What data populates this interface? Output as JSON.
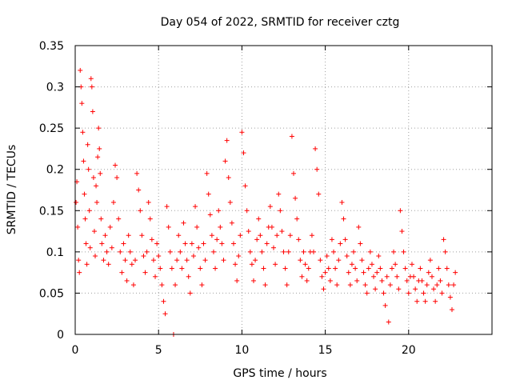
{
  "chart_data": {
    "type": "scatter",
    "title": "Day 054 of 2022, SRMTID for receiver cztg",
    "xlabel": "GPS time / hours",
    "ylabel": "SRMTID / TECUs",
    "xlim": [
      0,
      25
    ],
    "ylim": [
      0,
      0.35
    ],
    "grid": true,
    "marker": "+",
    "color": "#ff0000",
    "xticks": [
      {
        "value": 0,
        "label": "0"
      },
      {
        "value": 5,
        "label": "5"
      },
      {
        "value": 10,
        "label": "10"
      },
      {
        "value": 15,
        "label": "15"
      },
      {
        "value": 20,
        "label": "20"
      }
    ],
    "yticks": [
      {
        "value": 0,
        "label": "0"
      },
      {
        "value": 0.05,
        "label": "0.05"
      },
      {
        "value": 0.1,
        "label": "0.1"
      },
      {
        "value": 0.15,
        "label": "0.15"
      },
      {
        "value": 0.2,
        "label": "0.2"
      },
      {
        "value": 0.25,
        "label": "0.25"
      },
      {
        "value": 0.3,
        "label": "0.3"
      },
      {
        "value": 0.35,
        "label": "0.35"
      }
    ],
    "series": [
      {
        "name": "SRMTID",
        "points": [
          [
            0.05,
            0.16
          ],
          [
            0.1,
            0.185
          ],
          [
            0.15,
            0.13
          ],
          [
            0.2,
            0.09
          ],
          [
            0.25,
            0.075
          ],
          [
            0.3,
            0.32
          ],
          [
            0.35,
            0.3
          ],
          [
            0.4,
            0.28
          ],
          [
            0.45,
            0.245
          ],
          [
            0.5,
            0.21
          ],
          [
            0.55,
            0.17
          ],
          [
            0.6,
            0.14
          ],
          [
            0.65,
            0.11
          ],
          [
            0.7,
            0.085
          ],
          [
            0.75,
            0.23
          ],
          [
            0.8,
            0.2
          ],
          [
            0.85,
            0.15
          ],
          [
            0.9,
            0.105
          ],
          [
            0.95,
            0.31
          ],
          [
            1.0,
            0.3
          ],
          [
            1.05,
            0.27
          ],
          [
            1.1,
            0.19
          ],
          [
            1.15,
            0.125
          ],
          [
            1.2,
            0.095
          ],
          [
            1.25,
            0.18
          ],
          [
            1.3,
            0.16
          ],
          [
            1.35,
            0.215
          ],
          [
            1.4,
            0.25
          ],
          [
            1.45,
            0.225
          ],
          [
            1.5,
            0.195
          ],
          [
            1.55,
            0.14
          ],
          [
            1.6,
            0.11
          ],
          [
            1.7,
            0.09
          ],
          [
            1.8,
            0.12
          ],
          [
            1.9,
            0.1
          ],
          [
            2.0,
            0.085
          ],
          [
            2.1,
            0.13
          ],
          [
            2.2,
            0.105
          ],
          [
            2.3,
            0.16
          ],
          [
            2.4,
            0.205
          ],
          [
            2.5,
            0.19
          ],
          [
            2.6,
            0.14
          ],
          [
            2.7,
            0.1
          ],
          [
            2.8,
            0.075
          ],
          [
            2.9,
            0.11
          ],
          [
            3.0,
            0.09
          ],
          [
            3.1,
            0.065
          ],
          [
            3.2,
            0.12
          ],
          [
            3.3,
            0.1
          ],
          [
            3.4,
            0.085
          ],
          [
            3.5,
            0.06
          ],
          [
            3.6,
            0.09
          ],
          [
            3.7,
            0.195
          ],
          [
            3.8,
            0.175
          ],
          [
            3.9,
            0.15
          ],
          [
            4.0,
            0.12
          ],
          [
            4.1,
            0.095
          ],
          [
            4.2,
            0.075
          ],
          [
            4.3,
            0.1
          ],
          [
            4.4,
            0.16
          ],
          [
            4.5,
            0.14
          ],
          [
            4.6,
            0.115
          ],
          [
            4.7,
            0.09
          ],
          [
            4.8,
            0.07
          ],
          [
            4.9,
            0.11
          ],
          [
            5.0,
            0.095
          ],
          [
            5.1,
            0.08
          ],
          [
            5.2,
            0.06
          ],
          [
            5.3,
            0.04
          ],
          [
            5.4,
            0.025
          ],
          [
            5.5,
            0.155
          ],
          [
            5.6,
            0.13
          ],
          [
            5.7,
            0.1
          ],
          [
            5.8,
            0.08
          ],
          [
            5.9,
            0.0
          ],
          [
            6.0,
            0.06
          ],
          [
            6.1,
            0.09
          ],
          [
            6.2,
            0.12
          ],
          [
            6.3,
            0.1
          ],
          [
            6.4,
            0.08
          ],
          [
            6.5,
            0.135
          ],
          [
            6.6,
            0.11
          ],
          [
            6.7,
            0.09
          ],
          [
            6.8,
            0.07
          ],
          [
            6.9,
            0.05
          ],
          [
            7.0,
            0.11
          ],
          [
            7.1,
            0.095
          ],
          [
            7.2,
            0.155
          ],
          [
            7.3,
            0.13
          ],
          [
            7.4,
            0.105
          ],
          [
            7.5,
            0.08
          ],
          [
            7.6,
            0.06
          ],
          [
            7.7,
            0.11
          ],
          [
            7.8,
            0.09
          ],
          [
            7.9,
            0.195
          ],
          [
            8.0,
            0.17
          ],
          [
            8.1,
            0.145
          ],
          [
            8.2,
            0.12
          ],
          [
            8.3,
            0.1
          ],
          [
            8.4,
            0.08
          ],
          [
            8.5,
            0.115
          ],
          [
            8.6,
            0.15
          ],
          [
            8.7,
            0.13
          ],
          [
            8.8,
            0.11
          ],
          [
            8.9,
            0.09
          ],
          [
            9.0,
            0.21
          ],
          [
            9.1,
            0.235
          ],
          [
            9.2,
            0.19
          ],
          [
            9.3,
            0.16
          ],
          [
            9.4,
            0.135
          ],
          [
            9.5,
            0.11
          ],
          [
            9.6,
            0.085
          ],
          [
            9.7,
            0.065
          ],
          [
            9.8,
            0.095
          ],
          [
            9.9,
            0.12
          ],
          [
            10.0,
            0.245
          ],
          [
            10.1,
            0.22
          ],
          [
            10.2,
            0.18
          ],
          [
            10.3,
            0.15
          ],
          [
            10.4,
            0.125
          ],
          [
            10.5,
            0.1
          ],
          [
            10.6,
            0.085
          ],
          [
            10.7,
            0.065
          ],
          [
            10.8,
            0.09
          ],
          [
            10.9,
            0.115
          ],
          [
            11.0,
            0.14
          ],
          [
            11.1,
            0.12
          ],
          [
            11.2,
            0.1
          ],
          [
            11.3,
            0.08
          ],
          [
            11.4,
            0.06
          ],
          [
            11.5,
            0.11
          ],
          [
            11.6,
            0.13
          ],
          [
            11.7,
            0.155
          ],
          [
            11.8,
            0.13
          ],
          [
            11.9,
            0.105
          ],
          [
            12.0,
            0.085
          ],
          [
            12.1,
            0.12
          ],
          [
            12.2,
            0.17
          ],
          [
            12.3,
            0.15
          ],
          [
            12.4,
            0.125
          ],
          [
            12.5,
            0.1
          ],
          [
            12.6,
            0.08
          ],
          [
            12.7,
            0.06
          ],
          [
            12.8,
            0.1
          ],
          [
            12.9,
            0.12
          ],
          [
            13.0,
            0.24
          ],
          [
            13.1,
            0.195
          ],
          [
            13.2,
            0.165
          ],
          [
            13.3,
            0.14
          ],
          [
            13.4,
            0.115
          ],
          [
            13.5,
            0.09
          ],
          [
            13.6,
            0.07
          ],
          [
            13.7,
            0.1
          ],
          [
            13.8,
            0.085
          ],
          [
            13.9,
            0.065
          ],
          [
            14.0,
            0.08
          ],
          [
            14.1,
            0.1
          ],
          [
            14.2,
            0.12
          ],
          [
            14.3,
            0.1
          ],
          [
            14.4,
            0.225
          ],
          [
            14.5,
            0.2
          ],
          [
            14.6,
            0.17
          ],
          [
            14.7,
            0.09
          ],
          [
            14.8,
            0.07
          ],
          [
            14.9,
            0.055
          ],
          [
            15.0,
            0.075
          ],
          [
            15.1,
            0.095
          ],
          [
            15.2,
            0.08
          ],
          [
            15.3,
            0.065
          ],
          [
            15.4,
            0.115
          ],
          [
            15.5,
            0.1
          ],
          [
            15.6,
            0.08
          ],
          [
            15.7,
            0.06
          ],
          [
            15.8,
            0.09
          ],
          [
            15.9,
            0.11
          ],
          [
            16.0,
            0.16
          ],
          [
            16.1,
            0.14
          ],
          [
            16.2,
            0.115
          ],
          [
            16.3,
            0.095
          ],
          [
            16.4,
            0.075
          ],
          [
            16.5,
            0.06
          ],
          [
            16.6,
            0.085
          ],
          [
            16.7,
            0.1
          ],
          [
            16.8,
            0.08
          ],
          [
            16.9,
            0.065
          ],
          [
            17.0,
            0.13
          ],
          [
            17.1,
            0.11
          ],
          [
            17.2,
            0.09
          ],
          [
            17.3,
            0.075
          ],
          [
            17.4,
            0.06
          ],
          [
            17.5,
            0.05
          ],
          [
            17.6,
            0.08
          ],
          [
            17.7,
            0.1
          ],
          [
            17.8,
            0.085
          ],
          [
            17.9,
            0.07
          ],
          [
            18.0,
            0.055
          ],
          [
            18.1,
            0.075
          ],
          [
            18.2,
            0.095
          ],
          [
            18.3,
            0.08
          ],
          [
            18.4,
            0.065
          ],
          [
            18.5,
            0.05
          ],
          [
            18.6,
            0.035
          ],
          [
            18.7,
            0.07
          ],
          [
            18.8,
            0.015
          ],
          [
            18.9,
            0.06
          ],
          [
            19.0,
            0.08
          ],
          [
            19.1,
            0.1
          ],
          [
            19.2,
            0.085
          ],
          [
            19.3,
            0.07
          ],
          [
            19.4,
            0.055
          ],
          [
            19.5,
            0.15
          ],
          [
            19.6,
            0.125
          ],
          [
            19.7,
            0.1
          ],
          [
            19.8,
            0.08
          ],
          [
            19.9,
            0.065
          ],
          [
            20.0,
            0.05
          ],
          [
            20.1,
            0.07
          ],
          [
            20.2,
            0.085
          ],
          [
            20.3,
            0.07
          ],
          [
            20.4,
            0.055
          ],
          [
            20.5,
            0.04
          ],
          [
            20.6,
            0.065
          ],
          [
            20.7,
            0.08
          ],
          [
            20.8,
            0.065
          ],
          [
            20.9,
            0.05
          ],
          [
            21.0,
            0.04
          ],
          [
            21.1,
            0.06
          ],
          [
            21.2,
            0.075
          ],
          [
            21.3,
            0.09
          ],
          [
            21.4,
            0.07
          ],
          [
            21.5,
            0.055
          ],
          [
            21.6,
            0.04
          ],
          [
            21.7,
            0.06
          ],
          [
            21.8,
            0.08
          ],
          [
            21.9,
            0.065
          ],
          [
            22.0,
            0.05
          ],
          [
            22.1,
            0.115
          ],
          [
            22.2,
            0.1
          ],
          [
            22.3,
            0.08
          ],
          [
            22.4,
            0.06
          ],
          [
            22.5,
            0.045
          ],
          [
            22.6,
            0.03
          ],
          [
            22.7,
            0.06
          ],
          [
            22.8,
            0.075
          ]
        ]
      }
    ]
  }
}
